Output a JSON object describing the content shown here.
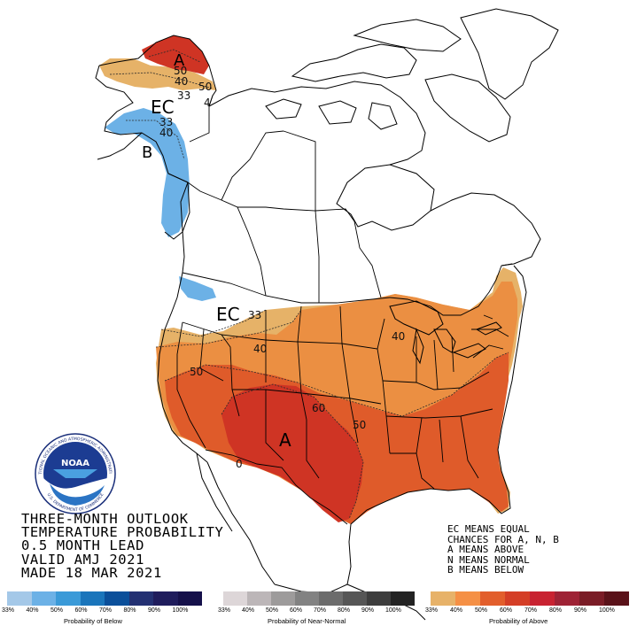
{
  "title_lines": [
    "THREE-MONTH OUTLOOK",
    "TEMPERATURE PROBABILITY",
    "0.5 MONTH LEAD",
    "VALID AMJ 2021",
    "MADE 18 MAR 2021"
  ],
  "legend_lines": [
    "EC MEANS EQUAL",
    "CHANCES FOR A, N, B",
    "A MEANS ABOVE",
    "N MEANS NORMAL",
    "B MEANS BELOW"
  ],
  "map_labels": {
    "ec": "EC",
    "above": "A",
    "below": "B"
  },
  "contour_labels": {
    "c33_ne": "33",
    "c40_ne": "40",
    "c50_ne": "50",
    "c40_ak": "40",
    "c50_ak": "50",
    "c4_ak": "4",
    "c33_ak": "33",
    "c33_ec": "33",
    "c40_b": "40",
    "c40_west": "40",
    "c50_west": "50",
    "c60": "60",
    "c50_south": "50",
    "c40_lakes": "40",
    "c0_sw": "0"
  },
  "scales": {
    "below": {
      "title": "Probability of Below",
      "ticks": [
        "33%",
        "40%",
        "50%",
        "60%",
        "70%",
        "80%",
        "90%",
        "100%"
      ],
      "colors": [
        "#a4c8e8",
        "#6cb1e6",
        "#3a9ad8",
        "#1a75bb",
        "#0b4f9a",
        "#233072",
        "#1f1c5c",
        "#15104a"
      ]
    },
    "normal": {
      "title": "Probability of Near-Normal",
      "ticks": [
        "33%",
        "40%",
        "50%",
        "60%",
        "70%",
        "80%",
        "90%",
        "100%"
      ],
      "colors": [
        "#ddd6d8",
        "#bcb6b8",
        "#9d9b9b",
        "#828282",
        "#6c6c6c",
        "#565656",
        "#3d3d3d",
        "#232323"
      ]
    },
    "above": {
      "title": "Probability of Above",
      "ticks": [
        "33%",
        "40%",
        "50%",
        "60%",
        "70%",
        "80%",
        "90%",
        "100%"
      ],
      "colors": [
        "#e7b269",
        "#f59045",
        "#e25e2c",
        "#d43e26",
        "#c82231",
        "#9e2235",
        "#7a1c26",
        "#5a1219"
      ]
    }
  },
  "colors": {
    "above_33": "#e6b268",
    "above_40": "#eb8f42",
    "above_50": "#df5b2a",
    "above_60": "#cf3424",
    "below_33": "#a4c8ea",
    "below_40": "#6cb1e6"
  },
  "logo": {
    "center_text": "NOAA",
    "ring_top": "NATIONAL OCEANIC AND ATMOSPHERIC ADMINISTRATION",
    "ring_bottom": "U.S. DEPARTMENT OF COMMERCE"
  }
}
